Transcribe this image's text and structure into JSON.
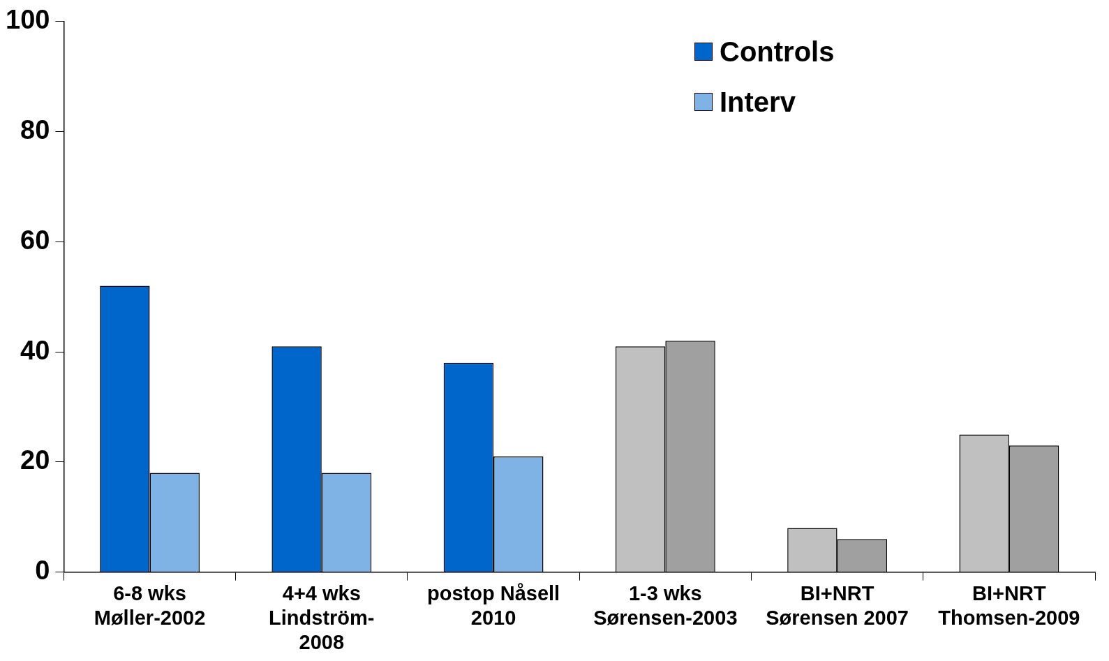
{
  "chart_data": {
    "type": "bar",
    "categories": [
      "6-8 wks\nMøller-2002",
      "4+4 wks\nLindström-\n2008",
      "postop Nåsell\n2010",
      "1-3 wks\nSørensen-2003",
      "BI+NRT\nSørensen 2007",
      "BI+NRT\nThomsen-2009"
    ],
    "series": [
      {
        "name": "Controls",
        "color": "#0066cc",
        "colors": [
          "#0066cc",
          "#0066cc",
          "#0066cc",
          "#c0c0c0",
          "#c0c0c0",
          "#c0c0c0"
        ],
        "values": [
          52,
          41,
          38,
          41,
          8,
          25
        ]
      },
      {
        "name": "Interv",
        "color": "#7fb2e5",
        "colors": [
          "#7fb2e5",
          "#7fb2e5",
          "#7fb2e5",
          "#a0a0a0",
          "#a0a0a0",
          "#a0a0a0"
        ],
        "values": [
          18,
          18,
          21,
          42,
          6,
          23
        ]
      }
    ],
    "ylim": [
      0,
      100
    ],
    "yticks": [
      0,
      20,
      40,
      60,
      80,
      100
    ],
    "grid": false,
    "legend": "top right"
  }
}
